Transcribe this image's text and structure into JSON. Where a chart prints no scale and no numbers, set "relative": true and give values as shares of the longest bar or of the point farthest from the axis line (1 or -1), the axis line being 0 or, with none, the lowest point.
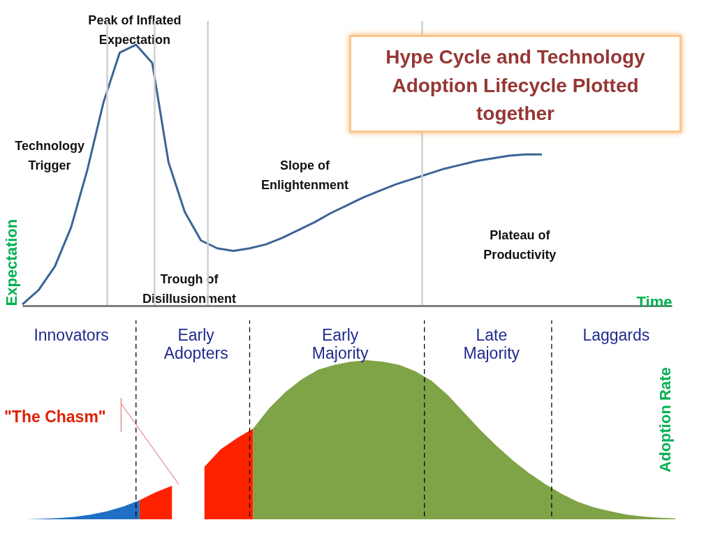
{
  "chart_data": [
    {
      "type": "line",
      "title": "Hype Cycle and Technology Adoption Lifecycle Plotted together",
      "xlabel": "Time",
      "ylabel": "Expectation",
      "relative": true,
      "tick_labels": false,
      "categories": [
        null,
        null,
        null,
        null,
        null,
        null,
        null,
        null,
        null,
        null,
        null,
        null,
        null,
        null,
        null,
        null,
        null,
        null,
        null,
        null,
        null,
        null,
        null,
        null,
        null,
        null,
        null,
        null,
        null,
        null,
        null,
        null,
        null,
        null,
        null,
        null,
        null,
        null,
        null,
        null,
        null
      ],
      "series": [
        {
          "color": "#3b6496",
          "values": [
            0.005,
            0.06,
            0.15,
            0.3,
            0.52,
            0.78,
            0.97,
            1.0,
            0.93,
            0.55,
            0.36,
            0.25,
            0.22,
            0.21,
            0.22,
            0.235,
            0.26,
            0.29,
            0.32,
            0.355,
            0.385,
            0.415,
            0.44,
            0.465,
            0.485,
            0.505,
            0.525,
            0.54,
            0.555,
            0.565,
            0.575,
            0.58,
            0.58,
            null,
            null,
            null,
            null,
            null,
            null,
            null,
            null
          ]
        }
      ],
      "annotations": [
        "Technology Trigger",
        "Peak of Inflated Expectation",
        "Trough of Disillusionment",
        "Slope of Enlightenment",
        "Plateau of Productivity"
      ]
    },
    {
      "type": "area",
      "ylabel": "Adoption Rate",
      "relative": true,
      "tick_labels": false,
      "categories": [
        null,
        null,
        null,
        null,
        null,
        null,
        null,
        null,
        null,
        null,
        null,
        null,
        null,
        null,
        null,
        null,
        null,
        null,
        null,
        null,
        null,
        null,
        null,
        null,
        null,
        null,
        null,
        null,
        null,
        null,
        null,
        null,
        null,
        null,
        null,
        null,
        null,
        null,
        null,
        null,
        null
      ],
      "series": [
        {
          "color": "#1f6fc4",
          "values": [
            0,
            0.003,
            0.008,
            0.015,
            0.03,
            0.05,
            0.08,
            0.12,
            null,
            null,
            null,
            null,
            null,
            null,
            null,
            null,
            null,
            null,
            null,
            null,
            null,
            null,
            null,
            null,
            null,
            null,
            null,
            null,
            null,
            null,
            null,
            null,
            null,
            null,
            null,
            null,
            null,
            null,
            null,
            null,
            null
          ]
        },
        {
          "color": "#ff2200",
          "values": [
            null,
            null,
            null,
            null,
            null,
            null,
            null,
            0.12,
            0.17,
            0.21,
            null,
            null,
            null,
            null,
            null,
            null,
            null,
            null,
            null,
            null,
            null,
            null,
            null,
            null,
            null,
            null,
            null,
            null,
            null,
            null,
            null,
            null,
            null,
            null,
            null,
            null,
            null,
            null,
            null,
            null,
            null
          ]
        },
        {
          "color": "#ff2200",
          "values": [
            null,
            null,
            null,
            null,
            null,
            null,
            null,
            null,
            null,
            null,
            null,
            0.33,
            0.44,
            0.51,
            0.57,
            null,
            null,
            null,
            null,
            null,
            null,
            null,
            null,
            null,
            null,
            null,
            null,
            null,
            null,
            null,
            null,
            null,
            null,
            null,
            null,
            null,
            null,
            null,
            null,
            null,
            null
          ]
        },
        {
          "color": "#7fa347",
          "values": [
            null,
            null,
            null,
            null,
            null,
            null,
            null,
            null,
            null,
            null,
            null,
            null,
            null,
            null,
            0.57,
            0.7,
            0.8,
            0.88,
            0.94,
            0.97,
            0.99,
            1.0,
            0.99,
            0.97,
            0.93,
            0.87,
            0.78,
            0.67,
            0.56,
            0.46,
            0.37,
            0.29,
            0.22,
            0.16,
            0.11,
            0.075,
            0.05,
            0.03,
            0.018,
            0.01,
            0.005
          ]
        }
      ],
      "annotations": [
        "Innovators",
        "Early Adopters",
        "Early Majority",
        "Late Majority",
        "Laggards",
        "\"The Chasm\""
      ]
    }
  ]
}
